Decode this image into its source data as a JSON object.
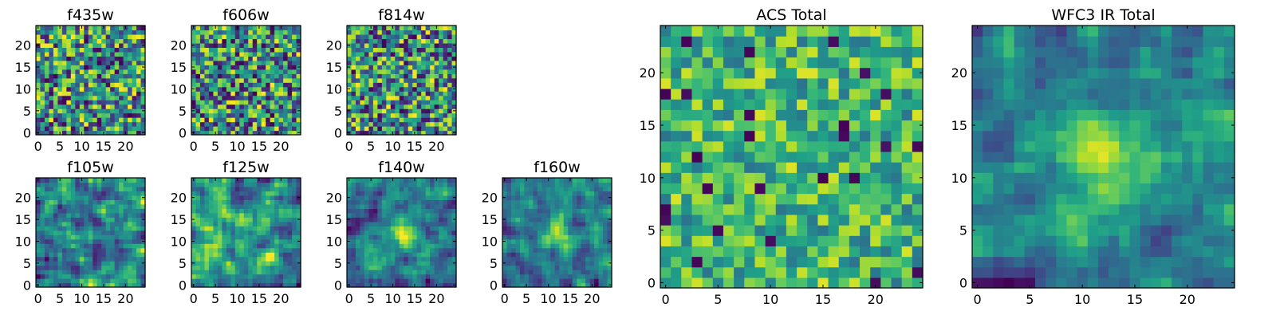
{
  "colors": {
    "background": "#ffffff",
    "axis": "#000000",
    "colormap": "viridis"
  },
  "chart_data": [
    {
      "type": "heatmap",
      "title": "f435w",
      "grid": [
        25,
        25
      ],
      "xticks": [
        0,
        5,
        10,
        15,
        20
      ],
      "yticks": [
        0,
        5,
        10,
        15,
        20
      ],
      "xlim": [
        -0.5,
        24.5
      ],
      "ylim": [
        -0.5,
        24.5
      ],
      "colormap": "viridis",
      "pattern": "noise",
      "seed": 11
    },
    {
      "type": "heatmap",
      "title": "f606w",
      "grid": [
        25,
        25
      ],
      "xticks": [
        0,
        5,
        10,
        15,
        20
      ],
      "yticks": [
        0,
        5,
        10,
        15,
        20
      ],
      "xlim": [
        -0.5,
        24.5
      ],
      "ylim": [
        -0.5,
        24.5
      ],
      "colormap": "viridis",
      "pattern": "noise",
      "seed": 23
    },
    {
      "type": "heatmap",
      "title": "f814w",
      "grid": [
        25,
        25
      ],
      "xticks": [
        0,
        5,
        10,
        15,
        20
      ],
      "yticks": [
        0,
        5,
        10,
        15,
        20
      ],
      "xlim": [
        -0.5,
        24.5
      ],
      "ylim": [
        -0.5,
        24.5
      ],
      "colormap": "viridis",
      "pattern": "noise",
      "seed": 37
    },
    {
      "type": "heatmap",
      "title": "f105w",
      "grid": [
        25,
        25
      ],
      "xticks": [
        0,
        5,
        10,
        15,
        20
      ],
      "yticks": [
        0,
        5,
        10,
        15,
        20
      ],
      "xlim": [
        -0.5,
        24.5
      ],
      "ylim": [
        -0.5,
        24.5
      ],
      "colormap": "viridis",
      "pattern": "smooth",
      "seed": 41
    },
    {
      "type": "heatmap",
      "title": "f125w",
      "grid": [
        25,
        25
      ],
      "xticks": [
        0,
        5,
        10,
        15,
        20
      ],
      "yticks": [
        0,
        5,
        10,
        15,
        20
      ],
      "xlim": [
        -0.5,
        24.5
      ],
      "ylim": [
        -0.5,
        24.5
      ],
      "colormap": "viridis",
      "pattern": "smooth",
      "seed": 53
    },
    {
      "type": "heatmap",
      "title": "f140w",
      "grid": [
        25,
        25
      ],
      "xticks": [
        0,
        5,
        10,
        15,
        20
      ],
      "yticks": [
        0,
        5,
        10,
        15,
        20
      ],
      "xlim": [
        -0.5,
        24.5
      ],
      "ylim": [
        -0.5,
        24.5
      ],
      "colormap": "viridis",
      "pattern": "smooth-source",
      "seed": 67
    },
    {
      "type": "heatmap",
      "title": "f160w",
      "grid": [
        25,
        25
      ],
      "xticks": [
        0,
        5,
        10,
        15,
        20
      ],
      "yticks": [
        0,
        5,
        10,
        15,
        20
      ],
      "xlim": [
        -0.5,
        24.5
      ],
      "ylim": [
        -0.5,
        24.5
      ],
      "colormap": "viridis",
      "pattern": "smooth-source",
      "seed": 79
    },
    {
      "type": "heatmap",
      "title": "ACS Total",
      "grid": [
        25,
        25
      ],
      "xticks": [
        0,
        5,
        10,
        15,
        20
      ],
      "yticks": [
        0,
        5,
        10,
        15,
        20
      ],
      "xlim": [
        -0.5,
        24.5
      ],
      "ylim": [
        -0.5,
        24.5
      ],
      "colormap": "viridis",
      "pattern": "noise-mid",
      "seed": 89
    },
    {
      "type": "heatmap",
      "title": "WFC3 IR Total",
      "grid": [
        25,
        25
      ],
      "xticks": [
        0,
        5,
        10,
        15,
        20
      ],
      "yticks": [
        0,
        5,
        10,
        15,
        20
      ],
      "xlim": [
        -0.5,
        24.5
      ],
      "ylim": [
        -0.5,
        24.5
      ],
      "colormap": "viridis",
      "pattern": "smooth-source",
      "seed": 97
    }
  ]
}
